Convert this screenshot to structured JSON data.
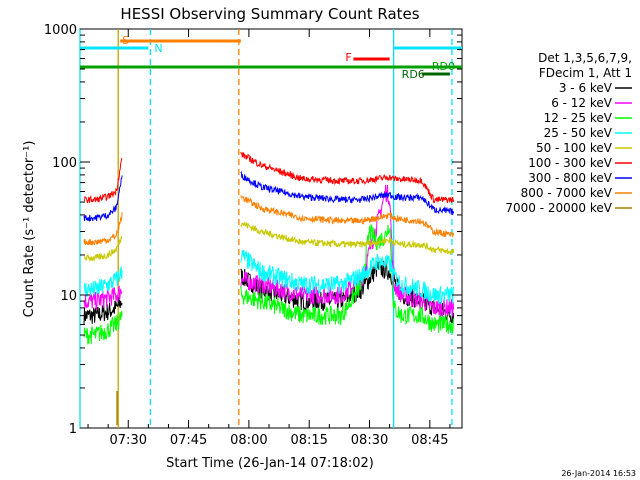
{
  "chart_data": {
    "type": "line",
    "title": "HESSI Observing Summary Count Rates",
    "xlabel": "Start Time (26-Jan-14 07:18:02)",
    "ylabel": "Count Rate (s⁻¹ detector⁻¹)",
    "y_scale": "log",
    "xlim": [
      0,
      95
    ],
    "ylim": [
      1,
      1000
    ],
    "x_ticks": [
      {
        "t": 12,
        "label": "07:30"
      },
      {
        "t": 27,
        "label": "07:45"
      },
      {
        "t": 42,
        "label": "08:00"
      },
      {
        "t": 57,
        "label": "08:15"
      },
      {
        "t": 72,
        "label": "08:30"
      },
      {
        "t": 87,
        "label": "08:45"
      }
    ],
    "y_ticks": [
      {
        "v": 1,
        "label": "1"
      },
      {
        "v": 10,
        "label": "10"
      },
      {
        "v": 100,
        "label": "100"
      },
      {
        "v": 1000,
        "label": "1000"
      }
    ],
    "legend_header": [
      "Det 1,3,5,6,7,9,",
      "FDecim 1, Att 1"
    ],
    "legend_position": "right",
    "timestamp": "26-Jan-2014 16:53",
    "flags": [
      {
        "label": "S",
        "color": "#ff8000",
        "t0": 10,
        "t1": 40
      },
      {
        "label": "N",
        "color": "#00e5ff",
        "t0": 0,
        "t1": 17
      },
      {
        "label": "F",
        "color": "#ff0000",
        "t0": 68,
        "t1": 77
      },
      {
        "label": "RD0",
        "color": "#00a000",
        "t0": 0,
        "t1": 95
      },
      {
        "label": "RD6",
        "color": "#006400",
        "t0": 85,
        "t1": 92
      },
      {
        "label": "",
        "color": "#00e5ff",
        "t0": 78,
        "t1": 95
      }
    ],
    "night_lines": [
      {
        "t": 0,
        "color": "#00e5ff",
        "style": "solid"
      },
      {
        "t": 9.5,
        "color": "#c8a000",
        "style": "solid"
      },
      {
        "t": 17.5,
        "color": "#00e5ff",
        "style": "dashed"
      },
      {
        "t": 39.5,
        "color": "#ff8000",
        "style": "dashed"
      },
      {
        "t": 78,
        "color": "#00e5ff",
        "style": "solid"
      },
      {
        "t": 92.5,
        "color": "#00e5ff",
        "style": "dashed"
      }
    ],
    "segments": [
      [
        1,
        10.5
      ],
      [
        40,
        93
      ]
    ],
    "series": [
      {
        "name": "3 - 6 keV",
        "color": "#000000",
        "x": [
          1,
          4,
          7,
          9,
          10.5,
          40,
          45,
          55,
          65,
          70,
          74,
          77,
          78,
          80,
          85,
          88,
          93
        ],
        "y": [
          7,
          7,
          7.5,
          8,
          9,
          14,
          11,
          9,
          9,
          11,
          16,
          15,
          13,
          10,
          9,
          8,
          7
        ]
      },
      {
        "name": "6 - 12 keV",
        "color": "#ff00ff",
        "x": [
          1,
          4,
          7,
          9,
          10.5,
          40,
          45,
          55,
          65,
          70,
          74,
          76,
          77,
          78,
          80,
          85,
          88,
          93
        ],
        "y": [
          9,
          9,
          9.5,
          10,
          11,
          13,
          12,
          10,
          10,
          13,
          35,
          60,
          55,
          12,
          10,
          9,
          8,
          8
        ]
      },
      {
        "name": "12 - 25 keV",
        "color": "#00ff00",
        "x": [
          1,
          4,
          7,
          9,
          10.5,
          40,
          45,
          55,
          65,
          70,
          72,
          74,
          76,
          77,
          78,
          80,
          85,
          88,
          93
        ],
        "y": [
          5,
          5,
          5.5,
          6,
          7,
          10,
          9,
          7,
          7,
          12,
          30,
          25,
          28,
          35,
          8,
          7,
          7,
          6,
          6
        ]
      },
      {
        "name": "25 - 50 keV",
        "color": "#00ffff",
        "x": [
          1,
          4,
          7,
          9,
          10.5,
          40,
          45,
          55,
          65,
          70,
          74,
          77,
          78,
          80,
          85,
          88,
          93
        ],
        "y": [
          11,
          11,
          12,
          13,
          15,
          20,
          15,
          12,
          12,
          14,
          18,
          17,
          14,
          12,
          11,
          10,
          10
        ]
      },
      {
        "name": "50 - 100 keV",
        "color": "#c8c800",
        "x": [
          1,
          4,
          7,
          9,
          10.5,
          40,
          45,
          55,
          65,
          70,
          74,
          77,
          78,
          80,
          85,
          88,
          93
        ],
        "y": [
          19,
          19,
          20,
          22,
          28,
          35,
          30,
          25,
          24,
          24,
          25,
          26,
          25,
          24,
          24,
          22,
          21
        ]
      },
      {
        "name": "100 - 300 keV",
        "color": "#ff0000",
        "x": [
          1,
          4,
          7,
          9,
          10.5,
          40,
          45,
          55,
          65,
          70,
          74,
          77,
          78,
          80,
          85,
          88,
          93
        ],
        "y": [
          52,
          52,
          55,
          60,
          110,
          115,
          95,
          75,
          72,
          72,
          75,
          77,
          75,
          74,
          73,
          52,
          52
        ]
      },
      {
        "name": "300 - 800 keV",
        "color": "#0000ff",
        "x": [
          1,
          4,
          7,
          9,
          10.5,
          40,
          45,
          55,
          65,
          70,
          74,
          77,
          78,
          80,
          85,
          88,
          93
        ],
        "y": [
          38,
          38,
          40,
          45,
          80,
          80,
          65,
          55,
          52,
          52,
          55,
          57,
          55,
          54,
          54,
          44,
          42
        ]
      },
      {
        "name": "800 - 7000 keV",
        "color": "#ff8000",
        "x": [
          1,
          4,
          7,
          9,
          10.5,
          40,
          45,
          55,
          65,
          70,
          74,
          77,
          78,
          80,
          85,
          88,
          93
        ],
        "y": [
          25,
          25,
          26,
          28,
          40,
          55,
          45,
          38,
          36,
          36,
          38,
          40,
          38,
          37,
          36,
          30,
          28
        ]
      },
      {
        "name": "7000 - 20000 keV",
        "color": "#a08000",
        "x": [],
        "y": []
      }
    ]
  }
}
